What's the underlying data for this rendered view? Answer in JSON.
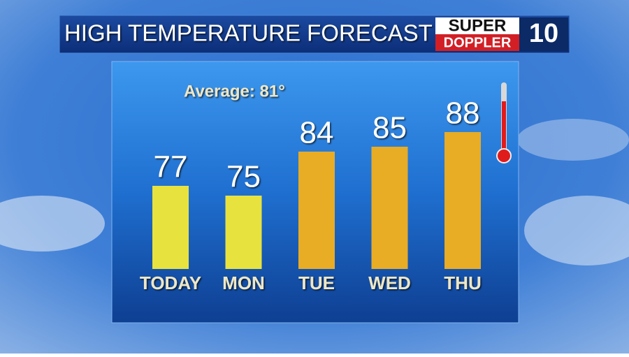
{
  "chart_data": {
    "type": "bar",
    "title": "HIGH TEMPERATURE FORECAST",
    "logo": {
      "top": "SUPER",
      "bottom": "DOPPLER",
      "number": "10"
    },
    "annotation": "Average: 81°",
    "categories": [
      "TODAY",
      "MON",
      "TUE",
      "WED",
      "THU"
    ],
    "values": [
      77,
      75,
      84,
      85,
      88
    ],
    "colors": [
      "#e8e23e",
      "#e8e23e",
      "#e8ac25",
      "#e8ac25",
      "#e8ac25"
    ],
    "ylim": [
      60,
      90
    ]
  }
}
